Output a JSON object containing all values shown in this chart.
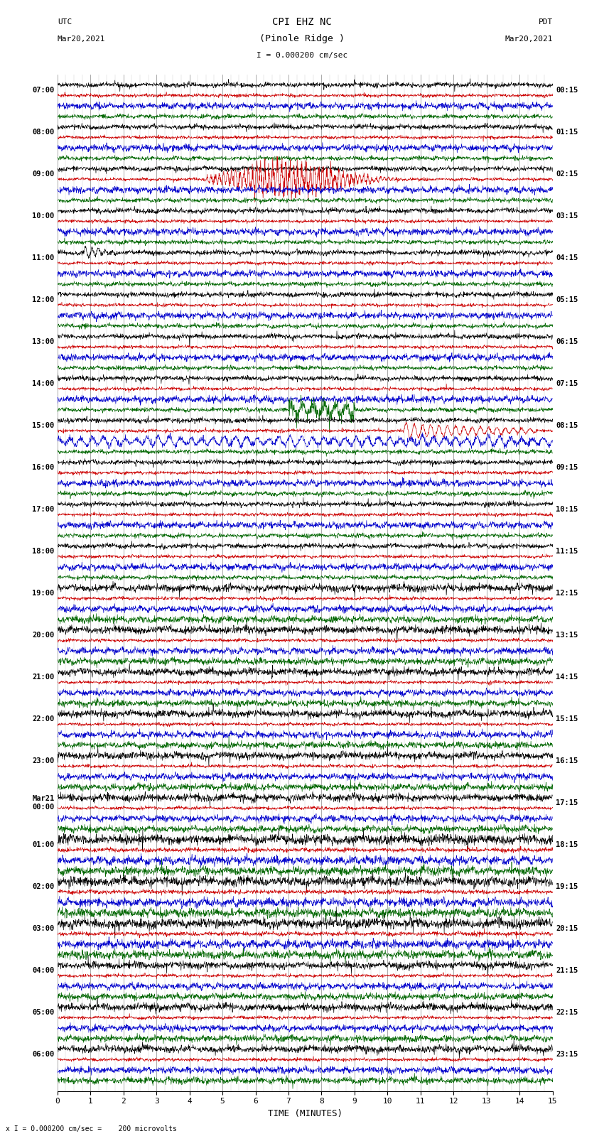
{
  "title_line1": "CPI EHZ NC",
  "title_line2": "(Pinole Ridge )",
  "scale_label": "= 0.000200 cm/sec",
  "scale_label2": "= 0.000200 cm/sec =    200 microvolts",
  "utc_label1": "UTC",
  "utc_label2": "Mar20,2021",
  "pdt_label1": "PDT",
  "pdt_label2": "Mar20,2021",
  "xlabel": "TIME (MINUTES)",
  "left_times": [
    "07:00",
    "08:00",
    "09:00",
    "10:00",
    "11:00",
    "12:00",
    "13:00",
    "14:00",
    "15:00",
    "16:00",
    "17:00",
    "18:00",
    "19:00",
    "20:00",
    "21:00",
    "22:00",
    "23:00",
    "Mar21\n00:00",
    "01:00",
    "02:00",
    "03:00",
    "04:00",
    "05:00",
    "06:00"
  ],
  "right_times": [
    "00:15",
    "01:15",
    "02:15",
    "03:15",
    "04:15",
    "05:15",
    "06:15",
    "07:15",
    "08:15",
    "09:15",
    "10:15",
    "11:15",
    "12:15",
    "13:15",
    "14:15",
    "15:15",
    "16:15",
    "17:15",
    "18:15",
    "19:15",
    "20:15",
    "21:15",
    "22:15",
    "23:15"
  ],
  "num_hours": 24,
  "num_channels": 4,
  "channel_colors": [
    "#000000",
    "#cc0000",
    "#0000cc",
    "#006600"
  ],
  "xmin": 0,
  "xmax": 15,
  "xticks": [
    0,
    1,
    2,
    3,
    4,
    5,
    6,
    7,
    8,
    9,
    10,
    11,
    12,
    13,
    14,
    15
  ],
  "grid_color": "#888888",
  "background_color": "#ffffff",
  "figwidth": 8.5,
  "figheight": 16.13
}
